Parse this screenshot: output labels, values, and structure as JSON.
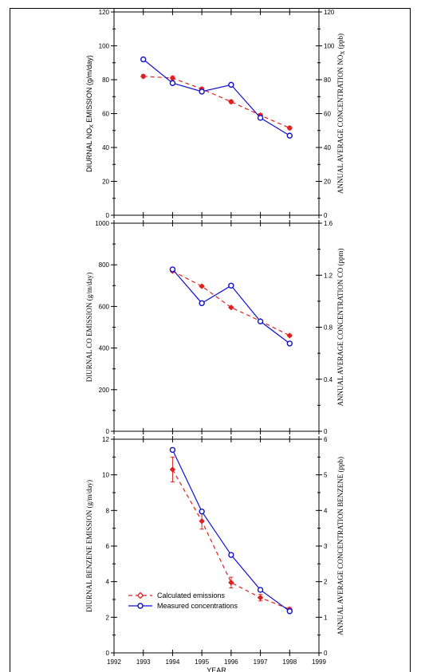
{
  "chart_data": [
    {
      "type": "line",
      "ylabel_left": "DIURNAL NO",
      "ylabel_left_sub": "X",
      "ylabel_left_tail": " EMISSION (g/m/day)",
      "ylabel_right": "ANNUAL AVERAGE CONCENTRATION NO",
      "ylabel_right_sub": "X",
      "ylabel_right_tail": " (ppb)",
      "ylim_left": [
        0,
        120
      ],
      "yticks_left": [
        "0",
        "20",
        "40",
        "60",
        "80",
        "100",
        "120"
      ],
      "ylim_right": [
        0,
        120
      ],
      "yticks_right": [
        "0",
        "20",
        "40",
        "60",
        "80",
        "100",
        "120"
      ],
      "xlim": [
        1992,
        1999
      ],
      "series": [
        {
          "x": [
            1993,
            1994,
            1995,
            1996,
            1997,
            1998
          ],
          "values": [
            82,
            81,
            74.5,
            67,
            59,
            51.5
          ],
          "err": [
            1,
            1,
            1,
            1,
            1,
            1
          ],
          "axis": "left",
          "color": "#e02020",
          "marker": "diamond",
          "dash": true
        },
        {
          "x": [
            1993,
            1994,
            1995,
            1996,
            1997,
            1998
          ],
          "values": [
            92,
            78,
            73,
            77,
            57.5,
            47
          ],
          "axis": "right",
          "color": "#1010d0",
          "marker": "circle",
          "dash": false
        }
      ]
    },
    {
      "type": "line",
      "ylabel_left": "DIURNAL CO EMISSION (g/m/day)",
      "ylabel_right": "ANNUAL AVERAGE CONCENTRATION CO (ppm)",
      "ylim_left": [
        0,
        1000
      ],
      "yticks_left": [
        "0",
        "200",
        "400",
        "600",
        "800",
        "1000"
      ],
      "ylim_right": [
        0,
        1.6
      ],
      "yticks_right": [
        "0",
        "0.4",
        "0.8",
        "1.2",
        "1.6"
      ],
      "xlim": [
        1992,
        1999
      ],
      "series": [
        {
          "x": [
            1994,
            1995,
            1996,
            1997,
            1998
          ],
          "values": [
            770,
            697,
            595,
            530,
            460
          ],
          "err": [
            5,
            5,
            5,
            5,
            5
          ],
          "axis": "left",
          "color": "#e02020",
          "marker": "diamond",
          "dash": true
        },
        {
          "x": [
            1994,
            1995,
            1996,
            1997,
            1998
          ],
          "values": [
            1.245,
            0.985,
            1.12,
            0.845,
            0.675
          ],
          "axis": "right",
          "color": "#1010d0",
          "marker": "circle",
          "dash": false
        }
      ]
    },
    {
      "type": "line",
      "ylabel_left": "DIURNAL BENZENE EMISSION (g/m/day)",
      "ylabel_right": "ANNUAL AVERAGE CONCENTRATION BENZENE (ppb)",
      "xlabel": "YEAR",
      "ylim_left": [
        0,
        12
      ],
      "yticks_left": [
        "0",
        "2",
        "4",
        "6",
        "8",
        "10",
        "12"
      ],
      "ylim_right": [
        0,
        6
      ],
      "yticks_right": [
        "0",
        "1",
        "2",
        "3",
        "4",
        "5",
        "6"
      ],
      "xlim": [
        1992,
        1999
      ],
      "xticks": [
        "1992",
        "1993",
        "1994",
        "1995",
        "1996",
        "1997",
        "1998",
        "1999"
      ],
      "series": [
        {
          "name": "Calculated emissions",
          "x": [
            1994,
            1995,
            1996,
            1997,
            1998
          ],
          "values": [
            10.3,
            7.4,
            3.95,
            3.1,
            2.45
          ],
          "err": [
            0.7,
            0.45,
            0.3,
            0.18,
            0.1
          ],
          "axis": "left",
          "color": "#e02020",
          "marker": "diamond",
          "dash": true
        },
        {
          "name": "Measured concentrations",
          "x": [
            1994,
            1995,
            1996,
            1997,
            1998
          ],
          "values": [
            5.7,
            3.97,
            2.75,
            1.77,
            1.17
          ],
          "axis": "right",
          "color": "#1010d0",
          "marker": "circle",
          "dash": false
        }
      ],
      "legend": "lower-left"
    }
  ]
}
